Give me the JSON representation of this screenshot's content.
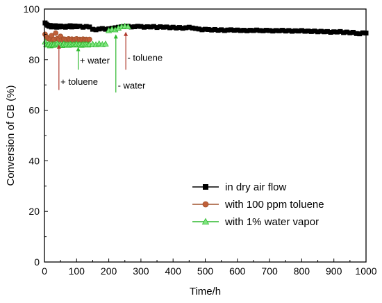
{
  "chart_data": {
    "type": "scatter",
    "title": "",
    "xlabel": "Time/h",
    "ylabel": "Conversion of CB (%)",
    "xlim": [
      0,
      1000
    ],
    "ylim": [
      0,
      100
    ],
    "xticks": [
      0,
      100,
      200,
      300,
      400,
      500,
      600,
      700,
      800,
      900,
      1000
    ],
    "yticks": [
      0,
      20,
      40,
      60,
      80,
      100
    ],
    "grid": false,
    "legend_position": "bottom-right",
    "series": [
      {
        "name": "in dry air flow",
        "color": "#000000",
        "marker": "square",
        "x": [
          2,
          6,
          10,
          14,
          18,
          22,
          26,
          30,
          34,
          38,
          42,
          46,
          50,
          55,
          60,
          65,
          70,
          75,
          80,
          85,
          90,
          95,
          100,
          110,
          120,
          130,
          140,
          150,
          160,
          170,
          180,
          190,
          200,
          210,
          220,
          230,
          240,
          250,
          260,
          270,
          280,
          290,
          300,
          310,
          320,
          330,
          340,
          350,
          360,
          370,
          380,
          390,
          400,
          410,
          420,
          430,
          440,
          450,
          460,
          470,
          480,
          490,
          500,
          510,
          520,
          530,
          540,
          550,
          560,
          570,
          580,
          590,
          600,
          610,
          620,
          630,
          640,
          650,
          660,
          670,
          680,
          690,
          700,
          710,
          720,
          730,
          740,
          750,
          760,
          770,
          780,
          790,
          800,
          810,
          820,
          830,
          840,
          850,
          860,
          870,
          880,
          890,
          900,
          910,
          920,
          930,
          940,
          950,
          960,
          970,
          980,
          990,
          1000
        ],
        "y": [
          94.5,
          94.0,
          93.6,
          93.2,
          93.5,
          92.9,
          93.3,
          93.0,
          93.4,
          92.8,
          93.2,
          92.9,
          93.3,
          93.0,
          93.1,
          92.8,
          93.2,
          93.0,
          93.4,
          92.9,
          93.1,
          93.3,
          93.0,
          93.2,
          92.8,
          93.1,
          92.9,
          92.0,
          91.8,
          92.1,
          92.3,
          92.0,
          92.2,
          92.4,
          92.6,
          92.8,
          93.0,
          93.1,
          93.2,
          92.9,
          93.0,
          93.2,
          93.1,
          92.8,
          93.0,
          92.9,
          93.1,
          92.7,
          93.0,
          92.8,
          92.9,
          92.6,
          92.8,
          92.5,
          92.7,
          92.4,
          92.6,
          92.8,
          92.5,
          92.3,
          92.1,
          91.8,
          92.0,
          91.9,
          91.7,
          91.9,
          91.6,
          91.8,
          91.5,
          91.7,
          91.8,
          91.6,
          91.7,
          91.5,
          91.6,
          91.4,
          91.6,
          91.5,
          91.7,
          91.5,
          91.4,
          91.6,
          91.5,
          91.3,
          91.5,
          91.4,
          91.6,
          91.3,
          91.5,
          91.2,
          91.4,
          91.3,
          91.5,
          91.2,
          91.3,
          91.1,
          91.3,
          91.0,
          91.2,
          91.0,
          91.1,
          90.8,
          91.0,
          90.9,
          91.1,
          90.7,
          90.9,
          90.6,
          90.8,
          90.3,
          90.2,
          90.6,
          90.5
        ]
      },
      {
        "name": "with 100 ppm toluene",
        "color": "#a0522d",
        "fill": "#c0603a",
        "marker": "circle",
        "x": [
          2,
          6,
          10,
          14,
          18,
          22,
          26,
          30,
          35,
          40,
          45,
          50,
          55,
          60,
          65,
          70,
          75,
          80,
          85,
          90,
          95,
          100,
          105,
          110,
          115,
          120,
          125,
          130,
          135,
          140
        ],
        "y": [
          90.0,
          89.0,
          88.5,
          88.2,
          88.0,
          89.5,
          87.8,
          88.0,
          90.5,
          88.3,
          88.0,
          89.2,
          87.9,
          88.1,
          88.0,
          87.8,
          88.2,
          87.9,
          88.1,
          87.8,
          88.0,
          88.2,
          87.9,
          88.0,
          87.8,
          88.1,
          87.9,
          88.0,
          87.8,
          88.0
        ]
      },
      {
        "name": "with 1% water vapor",
        "color": "#2db82d",
        "fill": "#7fe57f",
        "marker": "triangle",
        "x": [
          2,
          6,
          10,
          14,
          18,
          22,
          26,
          30,
          35,
          40,
          45,
          50,
          55,
          60,
          65,
          70,
          75,
          80,
          85,
          90,
          95,
          100,
          105,
          110,
          115,
          120,
          125,
          130,
          135,
          140,
          150,
          160,
          170,
          180,
          190,
          200,
          210,
          220,
          230,
          240,
          250,
          260
        ],
        "y": [
          87.0,
          86.0,
          85.8,
          86.2,
          85.5,
          86.0,
          85.7,
          86.1,
          85.9,
          86.3,
          85.8,
          86.0,
          85.6,
          86.2,
          85.9,
          86.0,
          85.7,
          86.1,
          85.8,
          86.0,
          85.9,
          86.2,
          85.8,
          86.0,
          85.7,
          86.1,
          85.9,
          86.0,
          85.8,
          86.0,
          86.1,
          85.9,
          86.3,
          86.0,
          86.2,
          91.5,
          92.0,
          91.8,
          92.5,
          93.0,
          93.2,
          93.0
        ]
      }
    ],
    "annotations": [
      {
        "label": "+ toluene",
        "color": "#b03a2e",
        "arrow_x": 45,
        "arrow_from_y": 68,
        "arrow_to_y": 86,
        "text_x": 50,
        "text_y": 70
      },
      {
        "label": "+ water",
        "color": "#2db82d",
        "arrow_x": 105,
        "arrow_from_y": 76,
        "arrow_to_y": 85,
        "text_x": 110,
        "text_y": 78.5
      },
      {
        "label": "- water",
        "color": "#2db82d",
        "arrow_x": 222,
        "arrow_from_y": 67,
        "arrow_to_y": 90,
        "text_x": 228,
        "text_y": 68.5
      },
      {
        "label": "- toluene",
        "color": "#b03a2e",
        "arrow_x": 253,
        "arrow_from_y": 76,
        "arrow_to_y": 91,
        "text_x": 258,
        "text_y": 79.5
      }
    ]
  }
}
